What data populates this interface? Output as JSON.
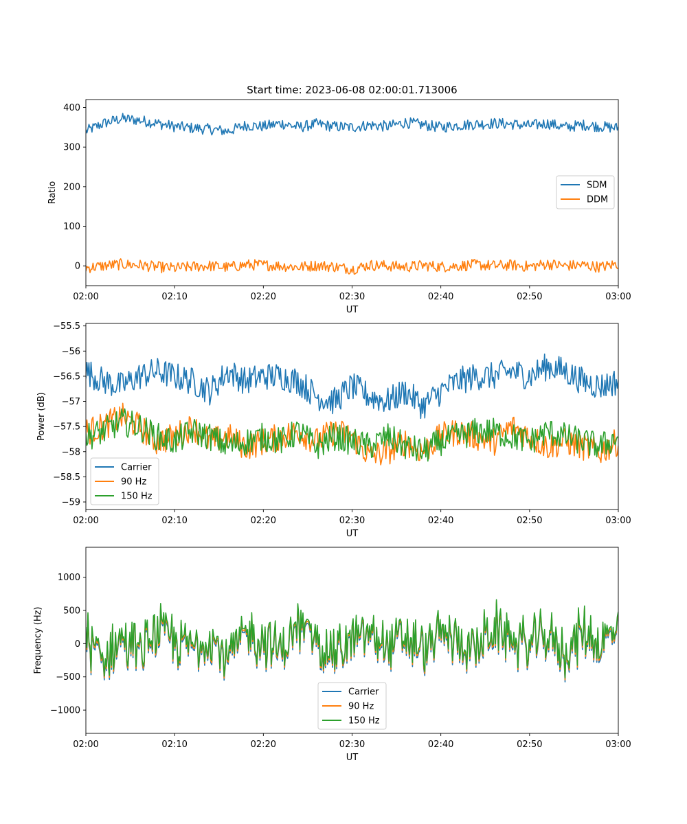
{
  "chart_data": [
    {
      "type": "line",
      "title": "Start time: 2023-06-08 02:00:01.713006",
      "xlabel": "UT",
      "ylabel": "Ratio",
      "xlim": [
        "02:00",
        "03:00"
      ],
      "ylim": [
        -50,
        420
      ],
      "x_ticks": [
        "02:00",
        "02:10",
        "02:20",
        "02:30",
        "02:40",
        "02:50",
        "03:00"
      ],
      "y_ticks": [
        0,
        100,
        200,
        300,
        400
      ],
      "legend_position": "center-right",
      "series": [
        {
          "name": "SDM",
          "color": "#1f77b4",
          "x": [
            "02:00",
            "02:02",
            "02:04",
            "02:06",
            "02:08",
            "02:10",
            "02:12",
            "02:14",
            "02:16",
            "02:18",
            "02:20",
            "02:22",
            "02:24",
            "02:26",
            "02:28",
            "02:30",
            "02:32",
            "02:34",
            "02:36",
            "02:38",
            "02:40",
            "02:42",
            "02:44",
            "02:46",
            "02:48",
            "02:50",
            "02:52",
            "02:54",
            "02:56",
            "02:58",
            "03:00"
          ],
          "values": [
            340,
            360,
            372,
            368,
            360,
            352,
            348,
            345,
            340,
            355,
            352,
            360,
            350,
            358,
            352,
            350,
            356,
            352,
            362,
            356,
            350,
            355,
            358,
            360,
            358,
            354,
            360,
            350,
            356,
            352,
            348
          ]
        },
        {
          "name": "DDM",
          "color": "#ff7f0e",
          "x": [
            "02:00",
            "02:02",
            "02:04",
            "02:06",
            "02:08",
            "02:10",
            "02:12",
            "02:14",
            "02:16",
            "02:18",
            "02:20",
            "02:22",
            "02:24",
            "02:26",
            "02:28",
            "02:30",
            "02:32",
            "02:34",
            "02:36",
            "02:38",
            "02:40",
            "02:42",
            "02:44",
            "02:46",
            "02:48",
            "02:50",
            "02:52",
            "02:54",
            "02:56",
            "02:58",
            "03:00"
          ],
          "values": [
            -5,
            0,
            4,
            2,
            -3,
            -6,
            -2,
            0,
            -4,
            3,
            2,
            0,
            -3,
            1,
            -2,
            -8,
            2,
            0,
            -3,
            1,
            -2,
            0,
            3,
            0,
            2,
            -2,
            5,
            0,
            2,
            -3,
            5
          ]
        }
      ]
    },
    {
      "type": "line",
      "xlabel": "UT",
      "ylabel": "Power (dB)",
      "xlim": [
        "02:00",
        "03:00"
      ],
      "ylim": [
        -59.15,
        -55.45
      ],
      "x_ticks": [
        "02:00",
        "02:10",
        "02:20",
        "02:30",
        "02:40",
        "02:50",
        "03:00"
      ],
      "y_ticks": [
        -59.0,
        -58.5,
        -58.0,
        -57.5,
        -57.0,
        -56.5,
        -56.0,
        -55.5
      ],
      "legend_position": "lower-left",
      "series": [
        {
          "name": "Carrier",
          "color": "#1f77b4",
          "x": [
            "02:00",
            "02:02",
            "02:04",
            "02:06",
            "02:08",
            "02:10",
            "02:12",
            "02:14",
            "02:16",
            "02:18",
            "02:20",
            "02:22",
            "02:24",
            "02:26",
            "02:28",
            "02:30",
            "02:32",
            "02:34",
            "02:36",
            "02:38",
            "02:40",
            "02:42",
            "02:44",
            "02:46",
            "02:48",
            "02:50",
            "02:52",
            "02:54",
            "02:56",
            "02:58",
            "03:00"
          ],
          "values": [
            -56.4,
            -56.6,
            -56.7,
            -56.5,
            -56.4,
            -56.5,
            -56.6,
            -56.8,
            -56.4,
            -56.6,
            -56.5,
            -56.5,
            -56.6,
            -56.9,
            -57.0,
            -56.7,
            -56.9,
            -57.0,
            -56.8,
            -57.1,
            -56.8,
            -56.6,
            -56.5,
            -56.5,
            -56.4,
            -56.5,
            -56.3,
            -56.4,
            -56.6,
            -56.7,
            -56.6
          ]
        },
        {
          "name": "90 Hz",
          "color": "#ff7f0e",
          "x": [
            "02:00",
            "02:02",
            "02:04",
            "02:06",
            "02:08",
            "02:10",
            "02:12",
            "02:14",
            "02:16",
            "02:18",
            "02:20",
            "02:22",
            "02:24",
            "02:26",
            "02:28",
            "02:30",
            "02:32",
            "02:34",
            "02:36",
            "02:38",
            "02:40",
            "02:42",
            "02:44",
            "02:46",
            "02:48",
            "02:50",
            "02:52",
            "02:54",
            "02:56",
            "02:58",
            "03:00"
          ],
          "values": [
            -57.6,
            -57.5,
            -57.3,
            -57.5,
            -57.8,
            -57.7,
            -57.5,
            -57.8,
            -57.7,
            -57.9,
            -57.8,
            -57.7,
            -57.6,
            -57.8,
            -57.6,
            -57.7,
            -58.1,
            -58.0,
            -57.8,
            -58.0,
            -57.7,
            -57.6,
            -57.7,
            -57.8,
            -57.5,
            -57.7,
            -57.9,
            -57.8,
            -57.9,
            -58.0,
            -57.8
          ]
        },
        {
          "name": "150 Hz",
          "color": "#2ca02c",
          "x": [
            "02:00",
            "02:02",
            "02:04",
            "02:06",
            "02:08",
            "02:10",
            "02:12",
            "02:14",
            "02:16",
            "02:18",
            "02:20",
            "02:22",
            "02:24",
            "02:26",
            "02:28",
            "02:30",
            "02:32",
            "02:34",
            "02:36",
            "02:38",
            "02:40",
            "02:42",
            "02:44",
            "02:46",
            "02:48",
            "02:50",
            "02:52",
            "02:54",
            "02:56",
            "02:58",
            "03:00"
          ],
          "values": [
            -57.7,
            -57.6,
            -57.4,
            -57.5,
            -57.7,
            -57.8,
            -57.6,
            -57.7,
            -57.9,
            -57.8,
            -57.7,
            -57.8,
            -57.6,
            -57.9,
            -57.7,
            -57.8,
            -57.9,
            -57.7,
            -57.9,
            -58.0,
            -57.8,
            -57.7,
            -57.6,
            -57.6,
            -57.7,
            -57.8,
            -57.6,
            -57.7,
            -57.8,
            -57.9,
            -57.7
          ]
        }
      ]
    },
    {
      "type": "line",
      "xlabel": "UT",
      "ylabel": "Frequency (Hz)",
      "xlim": [
        "02:00",
        "03:00"
      ],
      "ylim": [
        -1350,
        1450
      ],
      "x_ticks": [
        "02:00",
        "02:10",
        "02:20",
        "02:30",
        "02:40",
        "02:50",
        "03:00"
      ],
      "y_ticks": [
        -1000,
        -500,
        0,
        500,
        1000
      ],
      "legend_position": "lower-center",
      "series": [
        {
          "name": "Carrier",
          "color": "#1f77b4",
          "x": [
            "02:00",
            "02:02",
            "02:04",
            "02:06",
            "02:08",
            "02:10",
            "02:12",
            "02:14",
            "02:16",
            "02:18",
            "02:20",
            "02:22",
            "02:24",
            "02:26",
            "02:28",
            "02:30",
            "02:32",
            "02:34",
            "02:36",
            "02:38",
            "02:40",
            "02:42",
            "02:44",
            "02:46",
            "02:48",
            "02:50",
            "02:52",
            "02:54",
            "02:56",
            "02:58",
            "03:00"
          ],
          "values": [
            100,
            -300,
            50,
            -200,
            150,
            0,
            -100,
            80,
            -250,
            100,
            20,
            -150,
            200,
            60,
            -200,
            0,
            120,
            -80,
            30,
            -150,
            100,
            10,
            -120,
            180,
            40,
            -80,
            90,
            -200,
            150,
            -50,
            200
          ]
        },
        {
          "name": "90 Hz",
          "color": "#ff7f0e",
          "x": [
            "02:00",
            "02:02",
            "02:04",
            "02:06",
            "02:08",
            "02:10",
            "02:12",
            "02:14",
            "02:16",
            "02:18",
            "02:20",
            "02:22",
            "02:24",
            "02:26",
            "02:28",
            "02:30",
            "02:32",
            "02:34",
            "02:36",
            "02:38",
            "02:40",
            "02:42",
            "02:44",
            "02:46",
            "02:48",
            "02:50",
            "02:52",
            "02:54",
            "02:56",
            "02:58",
            "03:00"
          ],
          "values": [
            130,
            -270,
            80,
            -170,
            180,
            30,
            -70,
            110,
            -220,
            130,
            50,
            -120,
            230,
            90,
            -170,
            30,
            150,
            -50,
            60,
            -120,
            130,
            40,
            -90,
            210,
            70,
            -50,
            120,
            -170,
            180,
            -20,
            230
          ]
        },
        {
          "name": "150 Hz",
          "color": "#2ca02c",
          "x": [
            "02:00",
            "02:02",
            "02:04",
            "02:06",
            "02:08",
            "02:10",
            "02:12",
            "02:14",
            "02:16",
            "02:18",
            "02:20",
            "02:22",
            "02:24",
            "02:26",
            "02:28",
            "02:30",
            "02:32",
            "02:34",
            "02:36",
            "02:38",
            "02:40",
            "02:42",
            "02:44",
            "02:46",
            "02:48",
            "02:50",
            "02:52",
            "02:54",
            "02:56",
            "02:58",
            "03:00"
          ],
          "values": [
            160,
            -240,
            110,
            -140,
            210,
            60,
            -40,
            140,
            -190,
            160,
            80,
            -90,
            260,
            120,
            -140,
            60,
            180,
            -20,
            90,
            -90,
            160,
            70,
            -60,
            240,
            100,
            -20,
            150,
            -140,
            210,
            10,
            260
          ]
        }
      ]
    }
  ]
}
